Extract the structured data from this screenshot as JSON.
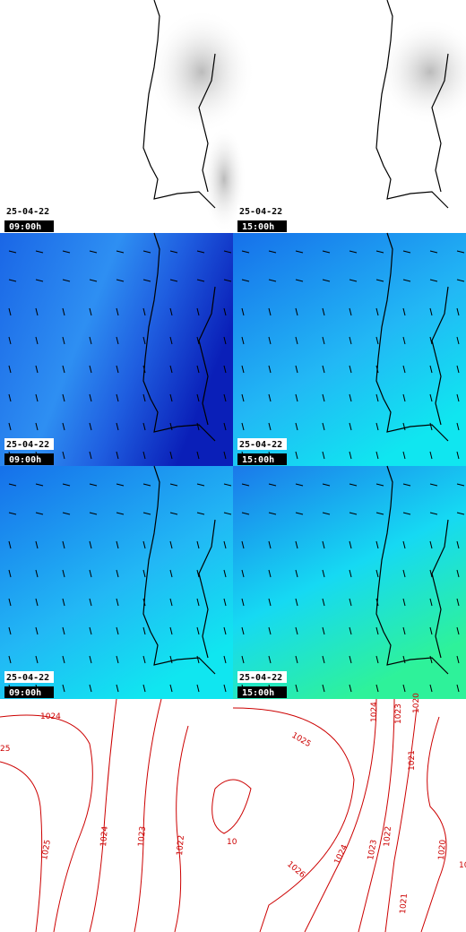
{
  "panels": [
    {
      "date": "25-04-22",
      "time": "09:00h"
    },
    {
      "date": "25-04-22",
      "time": "15:00h"
    },
    {
      "date": "25-04-22",
      "time": "09:00h"
    },
    {
      "date": "25-04-22",
      "time": "15:00h"
    },
    {
      "date": "25-04-22",
      "time": "09:00h"
    },
    {
      "date": "25-04-22",
      "time": "15:00h"
    }
  ],
  "isobars_left": [
    "1024",
    "25",
    "1025",
    "1024",
    "1023",
    "1022",
    "10"
  ],
  "isobars_right": [
    "1025",
    "1024",
    "1023",
    "1020",
    "1021",
    "1026",
    "1024",
    "1023",
    "1022",
    "1020",
    "1021",
    "10"
  ]
}
